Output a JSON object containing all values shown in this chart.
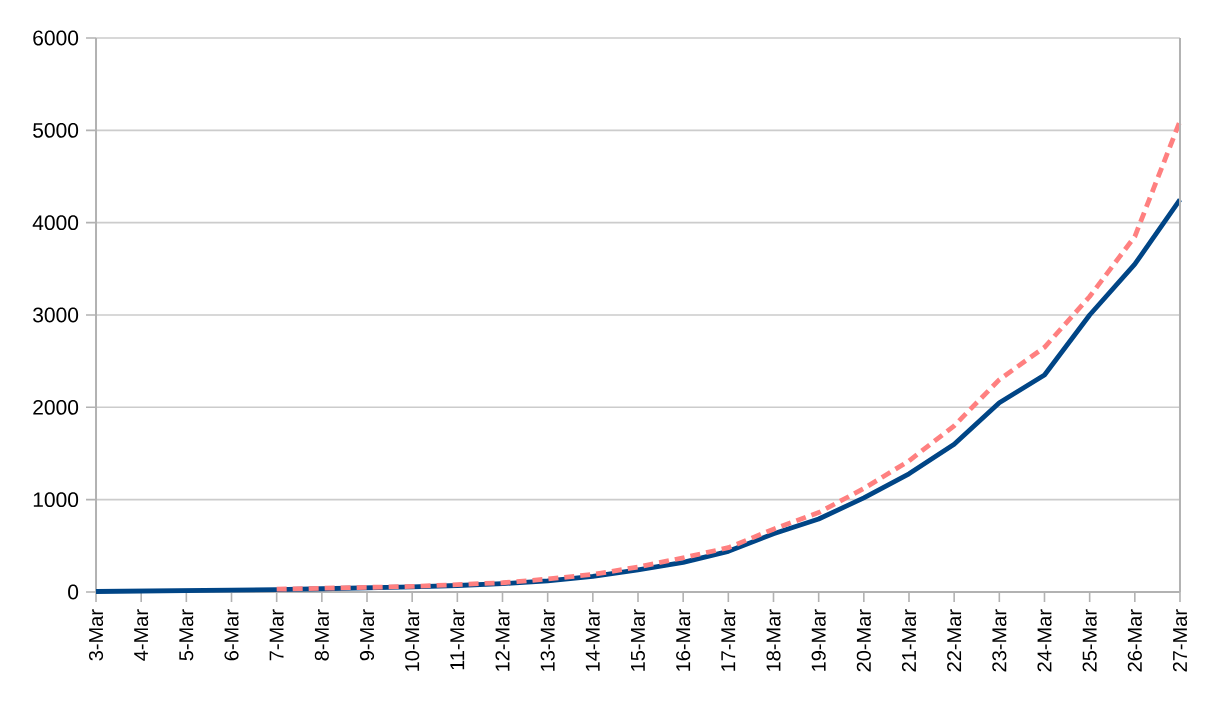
{
  "chart_data": {
    "type": "line",
    "categories": [
      "3-Mar",
      "4-Mar",
      "5-Mar",
      "6-Mar",
      "7-Mar",
      "8-Mar",
      "9-Mar",
      "10-Mar",
      "11-Mar",
      "12-Mar",
      "13-Mar",
      "14-Mar",
      "15-Mar",
      "16-Mar",
      "17-Mar",
      "18-Mar",
      "19-Mar",
      "20-Mar",
      "21-Mar",
      "22-Mar",
      "23-Mar",
      "24-Mar",
      "25-Mar",
      "26-Mar",
      "27-Mar"
    ],
    "series": [
      {
        "color": "#004586",
        "line_style": "solid",
        "values": [
          5,
          10,
          15,
          20,
          25,
          35,
          45,
          55,
          70,
          90,
          120,
          170,
          240,
          320,
          440,
          630,
          790,
          1020,
          1280,
          1600,
          2050,
          2350,
          3000,
          3550,
          4250
        ]
      },
      {
        "color": "#ff8080",
        "line_style": "dashed",
        "values": [
          null,
          null,
          null,
          null,
          30,
          40,
          50,
          60,
          80,
          100,
          140,
          190,
          270,
          370,
          480,
          680,
          860,
          1120,
          1420,
          1800,
          2300,
          2650,
          3200,
          3850,
          5100
        ]
      }
    ],
    "ylim": [
      0,
      6000
    ],
    "yticks": [
      0,
      1000,
      2000,
      3000,
      4000,
      5000,
      6000
    ],
    "grid": "y",
    "marker": "none"
  }
}
